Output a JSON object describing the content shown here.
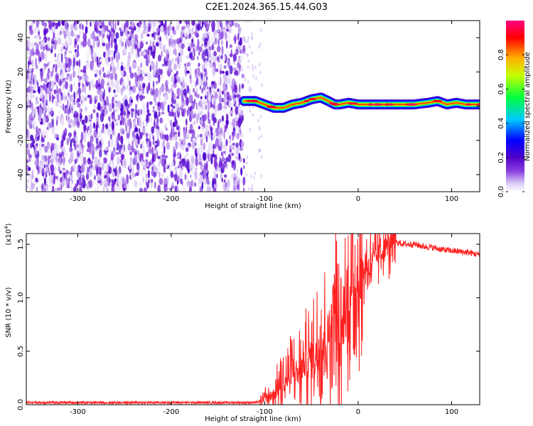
{
  "title": "C2E1.2024.365.15.44.G03",
  "chart_data": [
    {
      "type": "heatmap",
      "xlabel": "Height of straight line (km)",
      "ylabel": "Frequency (Hz)",
      "xlim": [
        -355,
        130
      ],
      "ylim": [
        -50,
        50
      ],
      "xticks": [
        -300,
        -200,
        -100,
        0,
        100
      ],
      "yticks": [
        -40,
        -20,
        0,
        20,
        40
      ],
      "colorbar": {
        "label": "Normalized spectral amplitude",
        "range": [
          0,
          1
        ],
        "ticks": [
          "0.0",
          "0.2",
          "0.4",
          "0.6",
          "0.8"
        ],
        "colors": [
          "#ffffff",
          "#c9b3f2",
          "#6a00d8",
          "#0000ff",
          "#00c8ff",
          "#00ff60",
          "#ffff00",
          "#ff8000",
          "#ff0000",
          "#ff0080"
        ]
      },
      "noise_region_x": [
        -355,
        -122
      ],
      "ridge": {
        "x": [
          -122,
          -110,
          -100,
          -90,
          -80,
          -70,
          -60,
          -50,
          -40,
          -32,
          -25,
          -20,
          -10,
          0,
          20,
          40,
          60,
          75,
          85,
          95,
          105,
          115,
          130
        ],
        "y": [
          3,
          3,
          1,
          -1,
          -1,
          1,
          2,
          4,
          5,
          3,
          1,
          1,
          2,
          1,
          1,
          1,
          1,
          2,
          3,
          1,
          2,
          1,
          1
        ]
      }
    },
    {
      "type": "line",
      "xlabel": "Height of straight line (km)",
      "ylabel": "SNR (10 * v/v)",
      "scale_label": "(x10^4)",
      "xlim": [
        -355,
        130
      ],
      "ylim": [
        0,
        1.6
      ],
      "xticks": [
        -300,
        -200,
        -100,
        0,
        100
      ],
      "yticks": [
        "0.0",
        "0.5",
        "1.0",
        "1.5"
      ],
      "color": "#ff2020",
      "series": [
        {
          "x": [
            -355,
            -300,
            -200,
            -110,
            -100,
            -90,
            -80,
            -70,
            -60,
            -50,
            -40,
            -30,
            -25,
            -20,
            -15,
            -10,
            -5,
            0,
            5,
            10,
            20,
            30,
            40,
            50,
            60,
            70,
            80,
            90,
            100,
            110,
            120,
            130
          ],
          "values": [
            0.02,
            0.02,
            0.02,
            0.02,
            0.04,
            0.1,
            0.2,
            0.3,
            0.35,
            0.45,
            0.6,
            0.7,
            1.1,
            0.5,
            0.8,
            1.0,
            1.1,
            1.15,
            1.25,
            1.3,
            1.4,
            1.48,
            1.52,
            1.5,
            1.5,
            1.48,
            1.47,
            1.45,
            1.44,
            1.43,
            1.42,
            1.4
          ]
        }
      ]
    }
  ]
}
